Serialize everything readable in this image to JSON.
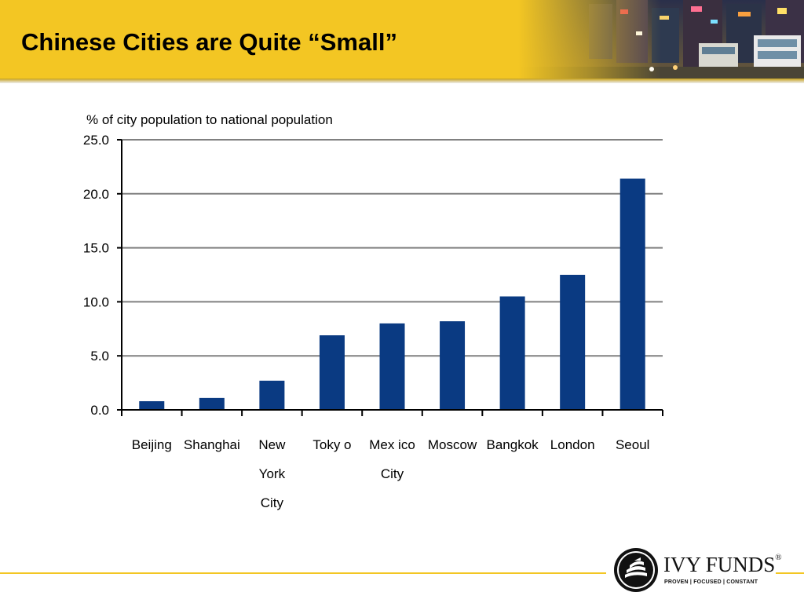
{
  "slide": {
    "title": "Chinese Cities are Quite “Small”"
  },
  "logo": {
    "name": "IVY FUNDS",
    "registered": "®",
    "tagline": "PROVEN | FOCUSED | CONSTANT"
  },
  "colors": {
    "header": "#f3c623",
    "bar": "#0a3a82",
    "grid": "#808080"
  },
  "chart_data": {
    "type": "bar",
    "ylabel": "% of city  population to national population",
    "xlabel": "",
    "categories": [
      [
        "Beijing"
      ],
      [
        "Shanghai"
      ],
      [
        "New",
        "York",
        "City"
      ],
      [
        "Toky o"
      ],
      [
        "Mex ico",
        "City"
      ],
      [
        "Moscow"
      ],
      [
        "Bangkok"
      ],
      [
        "London"
      ],
      [
        "Seoul"
      ]
    ],
    "values": [
      0.8,
      1.1,
      2.7,
      6.9,
      8.0,
      8.2,
      10.5,
      12.5,
      21.4
    ],
    "ylim": [
      0,
      25
    ],
    "yticks": [
      "0.0",
      "5.0",
      "10.0",
      "15.0",
      "20.0",
      "25.0"
    ],
    "ytick_values": [
      0,
      5,
      10,
      15,
      20,
      25
    ],
    "grid": true
  }
}
